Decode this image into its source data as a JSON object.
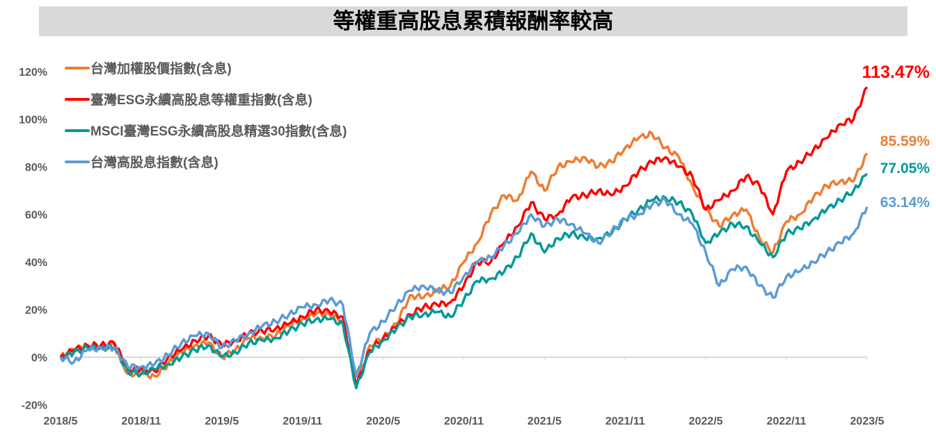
{
  "chart_data": {
    "type": "line",
    "title": "等權重高股息累積報酬率較高",
    "xlabel": "",
    "ylabel": "",
    "ylim": [
      -20,
      120
    ],
    "yticks": [
      "-20%",
      "0%",
      "20%",
      "40%",
      "60%",
      "80%",
      "100%",
      "120%"
    ],
    "yvalues": [
      -20,
      0,
      20,
      40,
      60,
      80,
      100,
      120
    ],
    "xticks": [
      "2018/5",
      "2018/11",
      "2019/5",
      "2019/11",
      "2020/5",
      "2020/11",
      "2021/5",
      "2021/11",
      "2022/5",
      "2022/11",
      "2023/5"
    ],
    "x_months": "monthly from 2018/5 to 2023/5",
    "legend_position": "top-left",
    "grid": false,
    "series": [
      {
        "name": "台灣加權股價指數(含息)",
        "color": "#ed7d31",
        "end_label": "85.59%",
        "values": [
          0,
          3,
          5,
          4,
          5,
          -7,
          -7,
          -8,
          -3,
          2,
          5,
          6,
          0,
          3,
          8,
          8,
          9,
          13,
          16,
          18,
          18,
          15,
          -12,
          5,
          8,
          14,
          26,
          25,
          28,
          30,
          40,
          48,
          60,
          68,
          66,
          78,
          70,
          80,
          82,
          84,
          80,
          82,
          88,
          92,
          94,
          88,
          84,
          72,
          62,
          55,
          60,
          62,
          50,
          44,
          57,
          60,
          67,
          72,
          74,
          74,
          85.59
        ]
      },
      {
        "name": "臺灣ESG永續高股息等權重指數(含息)",
        "color": "#ff0000",
        "end_label": "113.47%",
        "values": [
          0,
          3,
          5,
          5,
          6,
          -5,
          -5,
          -6,
          0,
          3,
          7,
          9,
          5,
          7,
          10,
          11,
          12,
          14,
          17,
          20,
          19,
          17,
          -12,
          3,
          8,
          13,
          18,
          21,
          22,
          23,
          30,
          40,
          40,
          48,
          55,
          65,
          58,
          60,
          67,
          68,
          70,
          68,
          72,
          78,
          82,
          84,
          80,
          76,
          62,
          66,
          70,
          76,
          72,
          60,
          78,
          82,
          87,
          92,
          98,
          100,
          113.47
        ]
      },
      {
        "name": "MSCI臺灣ESG永續高股息精選30指數(含息)",
        "color": "#009999",
        "end_label": "77.05%",
        "values": [
          0,
          2,
          4,
          4,
          4,
          -6,
          -7,
          -5,
          -3,
          0,
          3,
          5,
          0,
          2,
          6,
          7,
          8,
          11,
          14,
          16,
          16,
          14,
          -13,
          2,
          7,
          12,
          17,
          18,
          19,
          17,
          24,
          32,
          33,
          36,
          42,
          52,
          44,
          50,
          52,
          50,
          50,
          52,
          58,
          62,
          66,
          67,
          65,
          60,
          48,
          52,
          56,
          55,
          48,
          42,
          52,
          54,
          58,
          62,
          66,
          70,
          77.05
        ]
      },
      {
        "name": "台灣高股息指數(含息)",
        "color": "#5b9bd5",
        "end_label": "63.14%",
        "values": [
          0,
          -2,
          3,
          4,
          4,
          -4,
          -4,
          -3,
          1,
          6,
          9,
          10,
          4,
          7,
          10,
          13,
          15,
          18,
          21,
          22,
          24,
          22,
          -8,
          10,
          15,
          22,
          28,
          30,
          28,
          27,
          34,
          40,
          42,
          47,
          52,
          60,
          55,
          58,
          56,
          52,
          48,
          53,
          58,
          60,
          64,
          66,
          60,
          56,
          44,
          30,
          37,
          38,
          30,
          25,
          34,
          36,
          40,
          44,
          48,
          52,
          63.14
        ]
      }
    ]
  }
}
